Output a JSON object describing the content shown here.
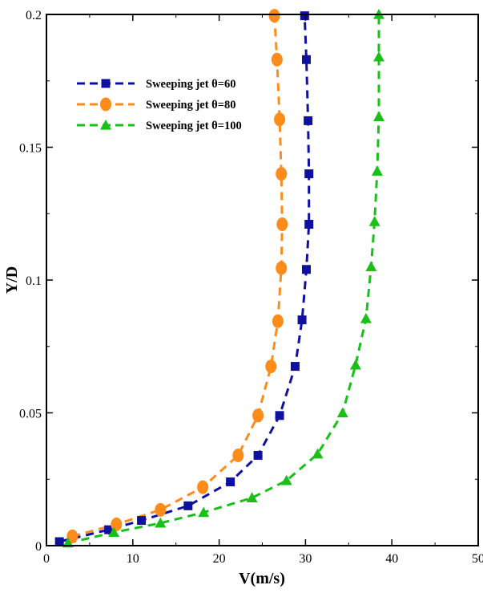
{
  "chart_data": {
    "type": "scatter",
    "xlabel": "V(m/s)",
    "ylabel": "Y/D",
    "xlim": [
      0,
      50
    ],
    "ylim": [
      0,
      0.2
    ],
    "xticks": [
      0,
      10,
      20,
      30,
      40,
      50
    ],
    "yticks": [
      0,
      0.05,
      0.1,
      0.15,
      0.2
    ],
    "xtick_labels": [
      "0",
      "10",
      "20",
      "30",
      "40",
      "50"
    ],
    "ytick_labels": [
      "0",
      "0.05",
      "0.1",
      "0.15",
      "0.2"
    ],
    "grid": false,
    "legend_position": "top-left",
    "series": [
      {
        "name": "Sweeping jet θ=60",
        "color": "#1010a0",
        "marker": "square",
        "line": "dashed",
        "points": [
          [
            1.5,
            0.0015
          ],
          [
            7.2,
            0.006
          ],
          [
            11.0,
            0.0095
          ],
          [
            16.4,
            0.015
          ],
          [
            21.3,
            0.024
          ],
          [
            24.5,
            0.034
          ],
          [
            27.0,
            0.049
          ],
          [
            28.8,
            0.0675
          ],
          [
            29.6,
            0.085
          ],
          [
            30.1,
            0.104
          ],
          [
            30.4,
            0.121
          ],
          [
            30.4,
            0.14
          ],
          [
            30.3,
            0.16
          ],
          [
            30.1,
            0.183
          ],
          [
            29.9,
            0.1995
          ]
        ]
      },
      {
        "name": "Sweeping jet θ=80",
        "color": "#ff8c1a",
        "marker": "circle",
        "line": "dashed",
        "points": [
          [
            3.0,
            0.0035
          ],
          [
            8.1,
            0.008
          ],
          [
            13.2,
            0.0135
          ],
          [
            18.1,
            0.022
          ],
          [
            22.2,
            0.034
          ],
          [
            24.5,
            0.049
          ],
          [
            26.0,
            0.0675
          ],
          [
            26.8,
            0.0845
          ],
          [
            27.2,
            0.1045
          ],
          [
            27.3,
            0.121
          ],
          [
            27.2,
            0.14
          ],
          [
            27.0,
            0.1605
          ],
          [
            26.7,
            0.183
          ],
          [
            26.4,
            0.1995
          ]
        ]
      },
      {
        "name": "Sweeping jet θ=100",
        "color": "#18c018",
        "marker": "triangle",
        "line": "dashed",
        "points": [
          [
            2.5,
            0.001
          ],
          [
            7.8,
            0.005
          ],
          [
            13.2,
            0.0085
          ],
          [
            18.2,
            0.0125
          ],
          [
            23.8,
            0.018
          ],
          [
            27.8,
            0.0245
          ],
          [
            31.4,
            0.0345
          ],
          [
            34.3,
            0.05
          ],
          [
            35.8,
            0.068
          ],
          [
            37.0,
            0.0855
          ],
          [
            37.6,
            0.105
          ],
          [
            38.0,
            0.122
          ],
          [
            38.3,
            0.141
          ],
          [
            38.5,
            0.1615
          ],
          [
            38.5,
            0.184
          ],
          [
            38.5,
            0.2
          ]
        ]
      }
    ]
  }
}
